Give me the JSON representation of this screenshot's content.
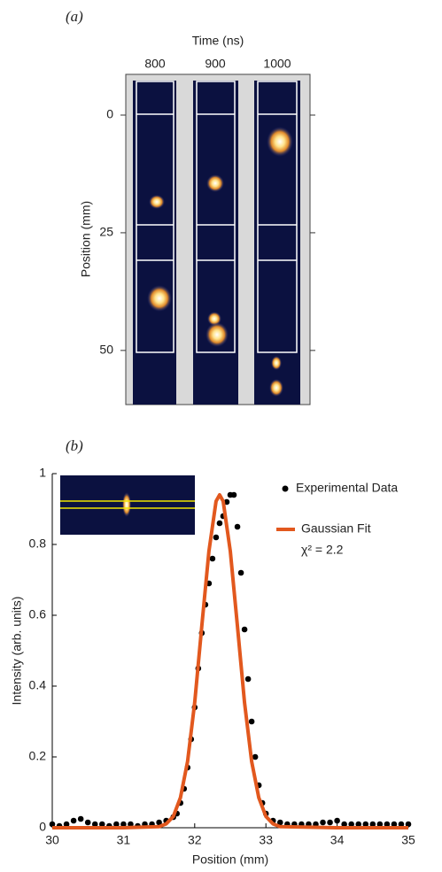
{
  "chart_data": [
    {
      "type": "image",
      "label": "(a)",
      "title": "Time (ns)",
      "categories": [
        "800",
        "900",
        "1000"
      ],
      "ylabel": "Position (mm)",
      "ylim": [
        -8.65,
        61.5
      ],
      "yticks": [
        0,
        25,
        50
      ]
    },
    {
      "type": "line",
      "label": "(b)",
      "xlabel": "Position (mm)",
      "ylabel": "Intensity (arb. units)",
      "xlim": [
        30,
        35
      ],
      "ylim": [
        0,
        1
      ],
      "xticks": [
        30,
        31,
        32,
        33,
        34,
        35
      ],
      "yticks": [
        0,
        0.2,
        0.4,
        0.6,
        0.8,
        1
      ],
      "legend": "upper right",
      "annotation": "χ² = 2.2",
      "series": [
        {
          "name": "Experimental Data",
          "color": "#000000",
          "marker": "dot",
          "x": [
            30.0,
            30.1,
            30.2,
            30.3,
            30.4,
            30.5,
            30.6,
            30.7,
            30.8,
            30.9,
            31.0,
            31.1,
            31.2,
            31.3,
            31.4,
            31.5,
            31.6,
            31.7,
            31.75,
            31.8,
            31.85,
            31.9,
            31.95,
            32.0,
            32.05,
            32.1,
            32.15,
            32.2,
            32.25,
            32.3,
            32.35,
            32.4,
            32.45,
            32.5,
            32.55,
            32.6,
            32.65,
            32.7,
            32.75,
            32.8,
            32.85,
            32.9,
            32.95,
            33.0,
            33.1,
            33.2,
            33.3,
            33.4,
            33.5,
            33.6,
            33.7,
            33.8,
            33.9,
            34.0,
            34.1,
            34.2,
            34.3,
            34.4,
            34.5,
            34.6,
            34.7,
            34.8,
            34.9,
            35.0
          ],
          "values": [
            0.01,
            0.005,
            0.01,
            0.02,
            0.025,
            0.015,
            0.01,
            0.01,
            0.005,
            0.01,
            0.01,
            0.01,
            0.005,
            0.01,
            0.01,
            0.015,
            0.02,
            0.03,
            0.04,
            0.07,
            0.11,
            0.17,
            0.25,
            0.34,
            0.45,
            0.55,
            0.63,
            0.69,
            0.76,
            0.82,
            0.86,
            0.88,
            0.92,
            0.94,
            0.94,
            0.85,
            0.72,
            0.56,
            0.42,
            0.3,
            0.2,
            0.12,
            0.07,
            0.04,
            0.02,
            0.015,
            0.01,
            0.01,
            0.01,
            0.01,
            0.01,
            0.015,
            0.015,
            0.02,
            0.01,
            0.01,
            0.01,
            0.01,
            0.01,
            0.01,
            0.01,
            0.01,
            0.01,
            0.01
          ]
        },
        {
          "name": "Gaussian Fit",
          "color": "#e2581e",
          "x": [
            30,
            31,
            31.5,
            31.6,
            31.7,
            31.8,
            31.9,
            32.0,
            32.1,
            32.2,
            32.3,
            32.35,
            32.4,
            32.5,
            32.6,
            32.7,
            32.8,
            32.9,
            33.0,
            33.1,
            33.2,
            34,
            35
          ],
          "values": [
            0,
            0,
            0.003,
            0.011,
            0.032,
            0.085,
            0.187,
            0.353,
            0.57,
            0.781,
            0.922,
            0.94,
            0.922,
            0.781,
            0.57,
            0.353,
            0.187,
            0.085,
            0.032,
            0.011,
            0.003,
            0,
            0
          ]
        }
      ]
    }
  ]
}
